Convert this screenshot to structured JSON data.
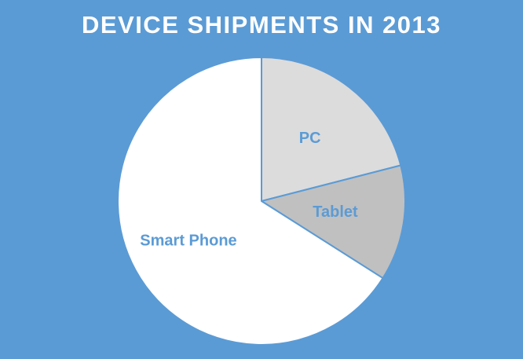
{
  "chart_data": {
    "type": "pie",
    "title": "DEVICE SHIPMENTS IN 2013",
    "categories": [
      "PC",
      "Tablet",
      "Smart Phone"
    ],
    "values": [
      21,
      13,
      66
    ],
    "colors": {
      "background": "#5b9bd5",
      "title": "#ffffff",
      "label": "#5b9bd5",
      "slices": [
        "#dcdcdc",
        "#c0c0c0",
        "#ffffff"
      ]
    },
    "start_angle_deg": 0,
    "direction": "clockwise",
    "legend": "none"
  }
}
